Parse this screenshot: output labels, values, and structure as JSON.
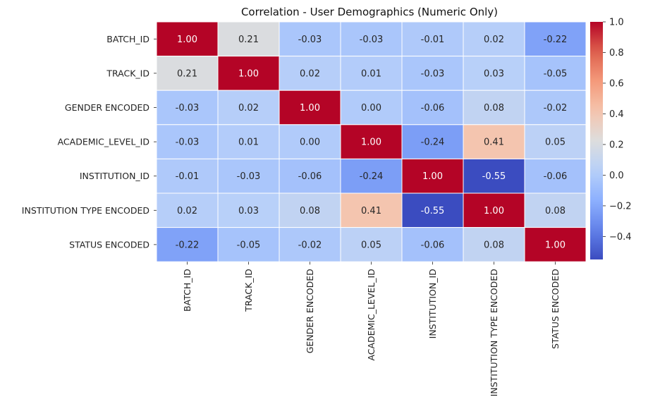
{
  "chart_data": {
    "type": "heatmap",
    "title": "Correlation - User Demographics (Numeric Only)",
    "xlabel": "",
    "ylabel": "",
    "labels": [
      "BATCH_ID",
      "TRACK_ID",
      "GENDER ENCODED",
      "ACADEMIC_LEVEL_ID",
      "INSTITUTION_ID",
      "INSTITUTION TYPE ENCODED",
      "STATUS ENCODED"
    ],
    "matrix": [
      [
        1.0,
        0.21,
        -0.03,
        -0.03,
        -0.01,
        0.02,
        -0.22
      ],
      [
        0.21,
        1.0,
        0.02,
        0.01,
        -0.03,
        0.03,
        -0.05
      ],
      [
        -0.03,
        0.02,
        1.0,
        -0.0,
        -0.06,
        0.08,
        -0.02
      ],
      [
        -0.03,
        0.01,
        -0.0,
        1.0,
        -0.24,
        0.41,
        0.05
      ],
      [
        -0.01,
        -0.03,
        -0.06,
        -0.24,
        1.0,
        -0.55,
        -0.06
      ],
      [
        0.02,
        0.03,
        0.08,
        0.41,
        -0.55,
        1.0,
        0.08
      ],
      [
        -0.22,
        -0.05,
        -0.02,
        0.05,
        -0.06,
        0.08,
        1.0
      ]
    ],
    "value_format": "2 decimals",
    "colormap": "coolwarm",
    "color_range": [
      -0.55,
      1.0
    ],
    "colorbar_ticks": [
      "1.0",
      "0.8",
      "0.6",
      "0.4",
      "0.2",
      "0.0",
      "−0.2",
      "−0.4"
    ],
    "colorbar_tick_values": [
      1.0,
      0.8,
      0.6,
      0.4,
      0.2,
      0.0,
      -0.2,
      -0.4
    ],
    "grid": false,
    "cell_borders": "white",
    "legend": "colorbar right"
  }
}
